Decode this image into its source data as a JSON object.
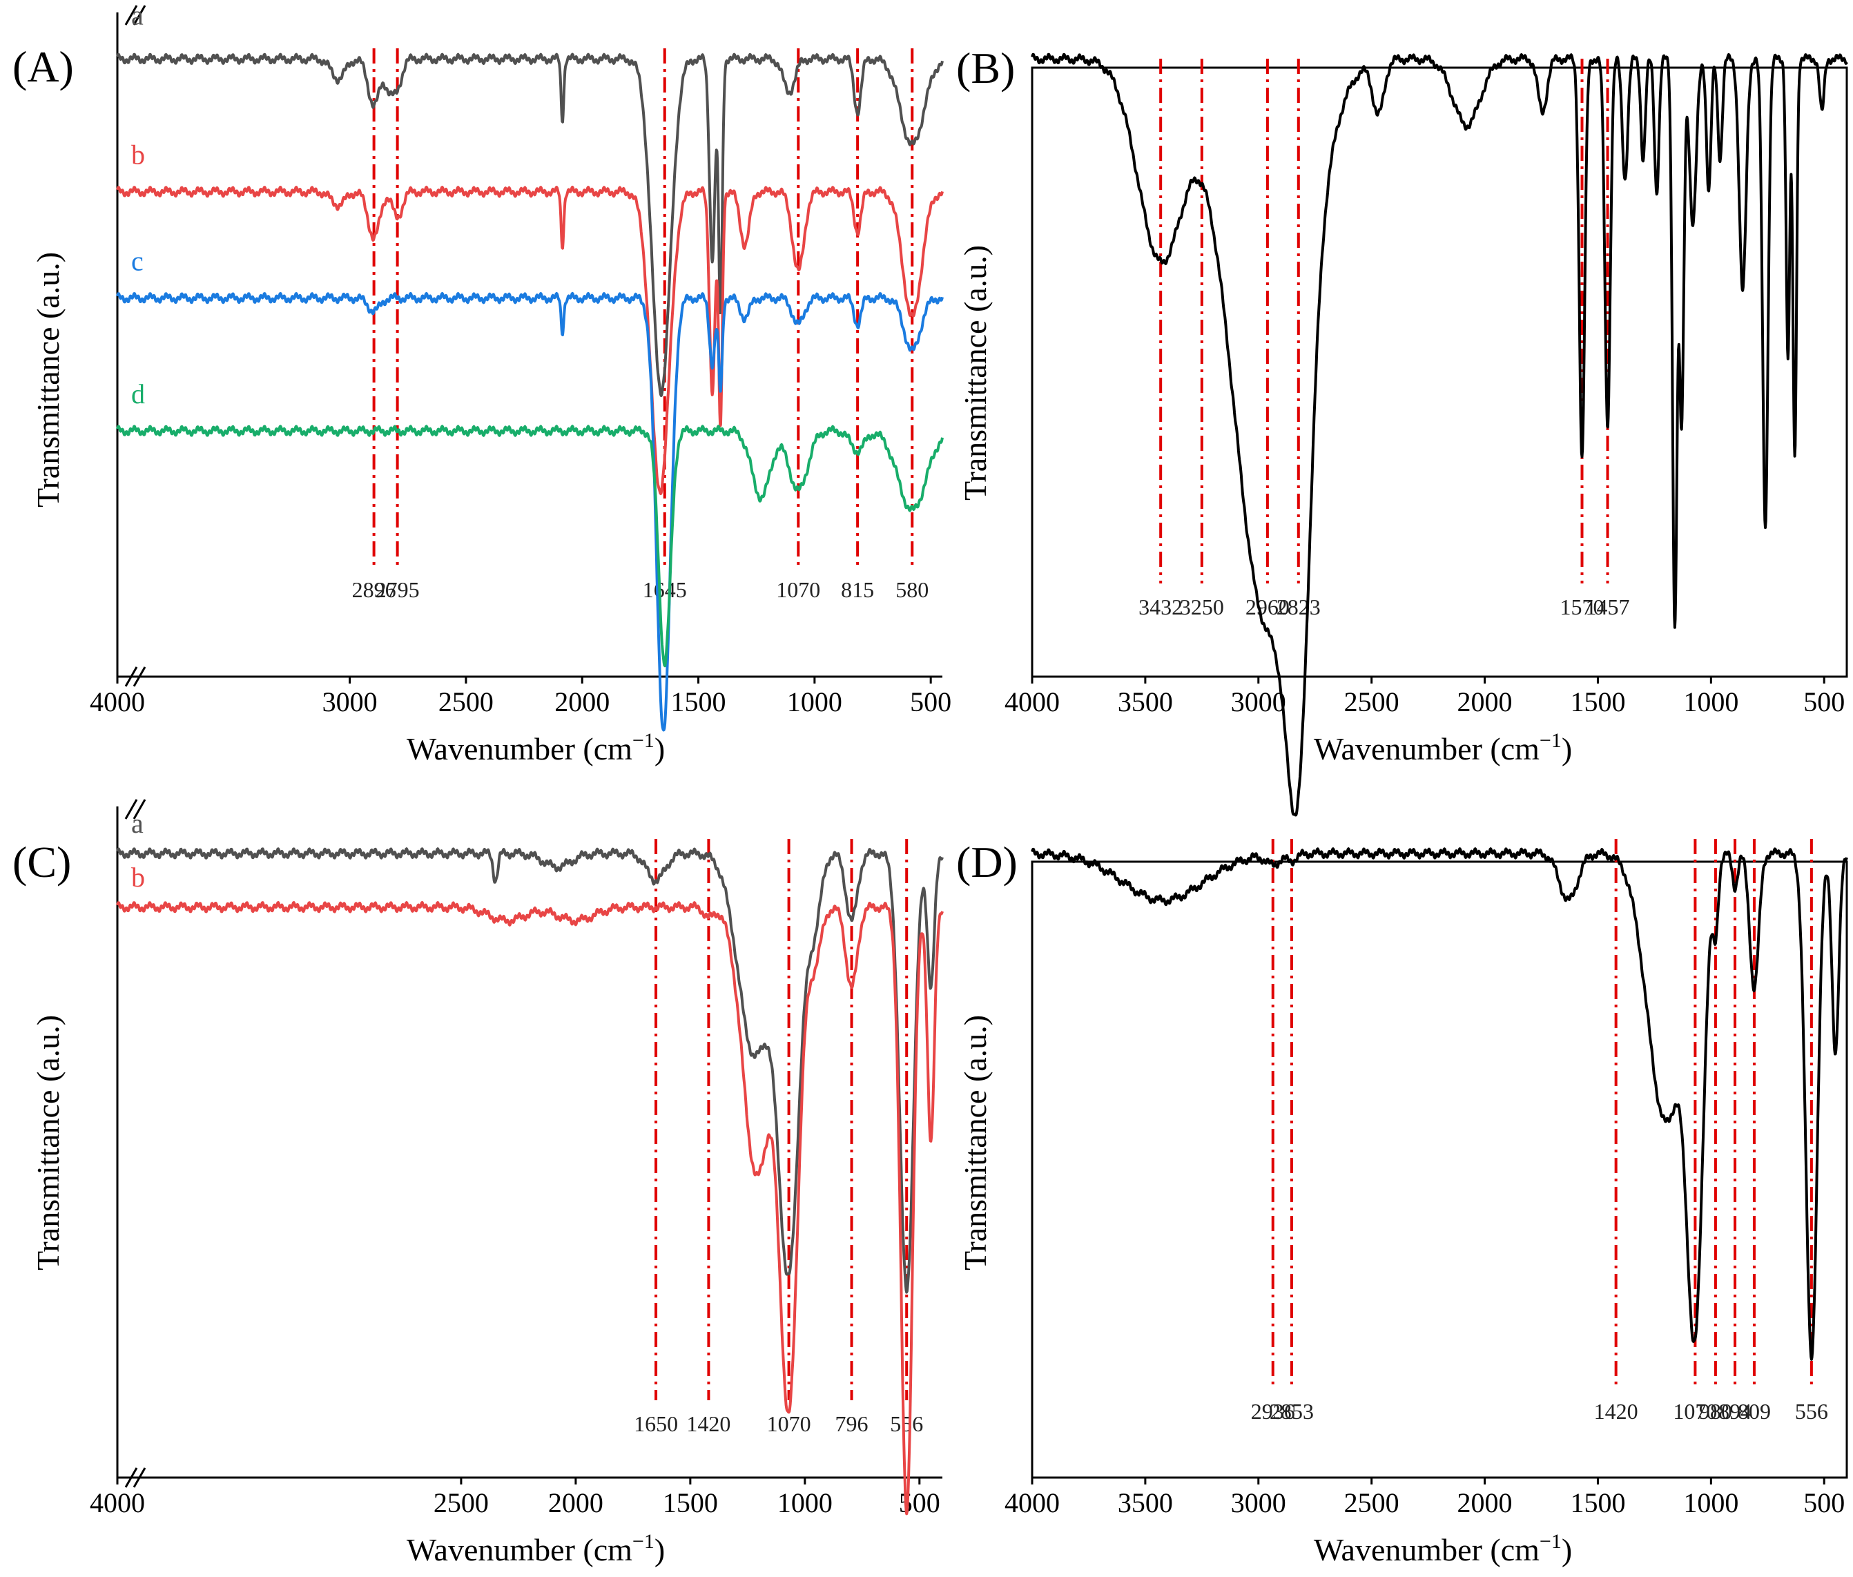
{
  "figure": {
    "colors": {
      "axis": "#000000",
      "marker": "#e00000",
      "gray": "#505050",
      "red": "#e84545",
      "blue": "#1a7be0",
      "green": "#18ad6a",
      "black": "#000000"
    }
  },
  "chart_data": [
    {
      "type": "line",
      "panel_label": "(A)",
      "title": "",
      "xlabel": "Wavenumber (cm",
      "xlabel_sup": "−1",
      "xlabel_close": ")",
      "ylabel": "Transmittance (a.u.)",
      "xlim": [
        4000,
        450
      ],
      "x_reversed": true,
      "axis_break": true,
      "xtick_values": [
        4000,
        3000,
        2500,
        2000,
        1500,
        1000,
        500
      ],
      "xtick_labels": [
        "4000",
        "3000",
        "2500",
        "2000",
        "1500",
        "1000",
        "500"
      ],
      "grid": false,
      "series": [
        {
          "name": "a",
          "color": "gray",
          "baseline": 0.93,
          "features": [
            [
              3050,
              0.03,
              30
            ],
            [
              2896,
              0.07,
              25
            ],
            [
              2830,
              0.04,
              20
            ],
            [
              2795,
              0.04,
              20
            ],
            [
              2085,
              0.09,
              6
            ],
            [
              1660,
              0.5,
              40
            ],
            [
              1440,
              0.3,
              12
            ],
            [
              1405,
              0.38,
              8
            ],
            [
              1110,
              0.05,
              25
            ],
            [
              815,
              0.08,
              15
            ],
            [
              580,
              0.13,
              50
            ]
          ],
          "label_x": 3015
        },
        {
          "name": "b",
          "color": "red",
          "baseline": 0.73,
          "features": [
            [
              3050,
              0.02,
              30
            ],
            [
              2896,
              0.07,
              25
            ],
            [
              2795,
              0.04,
              20
            ],
            [
              2085,
              0.08,
              6
            ],
            [
              1665,
              0.45,
              40
            ],
            [
              1440,
              0.3,
              12
            ],
            [
              1405,
              0.35,
              8
            ],
            [
              1300,
              0.08,
              20
            ],
            [
              1070,
              0.12,
              25
            ],
            [
              815,
              0.06,
              15
            ],
            [
              580,
              0.19,
              40
            ]
          ],
          "label_x": 3015
        },
        {
          "name": "c",
          "color": "blue",
          "baseline": 0.57,
          "features": [
            [
              2896,
              0.02,
              25
            ],
            [
              2085,
              0.05,
              6
            ],
            [
              1650,
              0.65,
              30
            ],
            [
              1440,
              0.1,
              12
            ],
            [
              1405,
              0.14,
              8
            ],
            [
              1300,
              0.03,
              20
            ],
            [
              1070,
              0.04,
              25
            ],
            [
              815,
              0.04,
              15
            ],
            [
              580,
              0.08,
              35
            ]
          ],
          "label_x": 3015
        },
        {
          "name": "d",
          "color": "green",
          "baseline": 0.37,
          "features": [
            [
              1645,
              0.35,
              25
            ],
            [
              1230,
              0.1,
              40
            ],
            [
              1070,
              0.09,
              40
            ],
            [
              815,
              0.03,
              30
            ],
            [
              580,
              0.12,
              60
            ]
          ],
          "label_x": 3015
        }
      ],
      "markers": [
        2896,
        2795,
        1645,
        1070,
        815,
        580
      ],
      "marker_labels": [
        "2896",
        "2795",
        "1645",
        "1070",
        "815",
        "580"
      ]
    },
    {
      "type": "line",
      "panel_label": "(B)",
      "title": "",
      "xlabel": "Wavenumber (cm",
      "xlabel_sup": "−1",
      "xlabel_close": ")",
      "ylabel": "Transmittance (a.u.)",
      "xlim": [
        4000,
        400
      ],
      "x_reversed": true,
      "axis_break": false,
      "xtick_values": [
        4000,
        3500,
        3000,
        2500,
        2000,
        1500,
        1000,
        500
      ],
      "xtick_labels": [
        "4000",
        "3500",
        "3000",
        "2500",
        "2000",
        "1500",
        "1000",
        "500"
      ],
      "grid": false,
      "series": [
        {
          "name": "",
          "color": "black",
          "baseline": 0.93,
          "features": [
            [
              3432,
              0.3,
              100
            ],
            [
              2960,
              0.85,
              150
            ],
            [
              2823,
              0.55,
              50
            ],
            [
              2470,
              0.08,
              25
            ],
            [
              2080,
              0.1,
              60
            ],
            [
              1745,
              0.08,
              20
            ],
            [
              1570,
              0.6,
              12
            ],
            [
              1457,
              0.55,
              12
            ],
            [
              1380,
              0.18,
              12
            ],
            [
              1300,
              0.15,
              10
            ],
            [
              1240,
              0.2,
              10
            ],
            [
              1160,
              0.85,
              10
            ],
            [
              1130,
              0.55,
              10
            ],
            [
              1080,
              0.25,
              15
            ],
            [
              1010,
              0.2,
              10
            ],
            [
              960,
              0.15,
              10
            ],
            [
              860,
              0.35,
              15
            ],
            [
              760,
              0.7,
              12
            ],
            [
              660,
              0.45,
              8
            ],
            [
              630,
              0.6,
              8
            ],
            [
              510,
              0.08,
              10
            ]
          ],
          "label_x": 0
        }
      ],
      "markers": [
        3432,
        3250,
        2960,
        2823,
        1570,
        1457
      ],
      "marker_labels": [
        "3432",
        "3250",
        "2960",
        "2823",
        "1570",
        "1457"
      ]
    },
    {
      "type": "line",
      "panel_label": "(C)",
      "title": "",
      "xlabel": "Wavenumber (cm",
      "xlabel_sup": "−1",
      "xlabel_close": ")",
      "ylabel": "Transmittance (a.u.)",
      "xlim": [
        4000,
        400
      ],
      "x_reversed": true,
      "axis_break": true,
      "xtick_values": [
        4000,
        2500,
        2000,
        1500,
        1000,
        500
      ],
      "xtick_labels": [
        "4000",
        "2500",
        "2000",
        "1500",
        "1000",
        "500"
      ],
      "grid": false,
      "series": [
        {
          "name": "a",
          "color": "gray",
          "baseline": 0.93,
          "features": [
            [
              2350,
              0.04,
              10
            ],
            [
              2080,
              0.02,
              60
            ],
            [
              1650,
              0.04,
              40
            ],
            [
              1220,
              0.3,
              70
            ],
            [
              1070,
              0.6,
              45
            ],
            [
              960,
              0.1,
              30
            ],
            [
              796,
              0.1,
              25
            ],
            [
              556,
              0.65,
              30
            ],
            [
              450,
              0.2,
              15
            ]
          ],
          "label_x": 3850
        },
        {
          "name": "b",
          "color": "red",
          "baseline": 0.85,
          "features": [
            [
              2300,
              0.02,
              80
            ],
            [
              2000,
              0.02,
              80
            ],
            [
              1420,
              0.015,
              20
            ],
            [
              1210,
              0.4,
              60
            ],
            [
              1070,
              0.73,
              40
            ],
            [
              960,
              0.08,
              30
            ],
            [
              796,
              0.12,
              25
            ],
            [
              556,
              0.9,
              25
            ],
            [
              450,
              0.35,
              15
            ]
          ],
          "label_x": 3850
        }
      ],
      "markers": [
        1650,
        1420,
        1070,
        796,
        556
      ],
      "marker_labels": [
        "1650",
        "1420",
        "1070",
        "796",
        "556"
      ]
    },
    {
      "type": "line",
      "panel_label": "(D)",
      "title": "",
      "xlabel": "Wavenumber (cm",
      "xlabel_sup": "−1",
      "xlabel_close": ")",
      "ylabel": "Transmittance (a.u.)",
      "xlim": [
        4000,
        400
      ],
      "x_reversed": true,
      "axis_break": false,
      "xtick_values": [
        4000,
        3500,
        3000,
        2500,
        2000,
        1500,
        1000,
        500
      ],
      "xtick_labels": [
        "4000",
        "3500",
        "3000",
        "2500",
        "2000",
        "1500",
        "1000",
        "500"
      ],
      "grid": false,
      "series": [
        {
          "name": "",
          "color": "black",
          "baseline": 0.93,
          "features": [
            [
              3420,
              0.07,
              180
            ],
            [
              2936,
              0.015,
              30
            ],
            [
              2853,
              0.01,
              25
            ],
            [
              1630,
              0.07,
              40
            ],
            [
              1200,
              0.4,
              80
            ],
            [
              1070,
              0.62,
              35
            ],
            [
              980,
              0.1,
              12
            ],
            [
              894,
              0.05,
              12
            ],
            [
              809,
              0.2,
              20
            ],
            [
              556,
              0.75,
              25
            ],
            [
              450,
              0.3,
              15
            ]
          ],
          "label_x": 0
        }
      ],
      "markers": [
        2936,
        2853,
        1420,
        1070,
        980,
        894,
        809,
        556
      ],
      "marker_labels": [
        "2936",
        "2853",
        "1420",
        "1070",
        "980",
        "894",
        "809",
        "556"
      ]
    }
  ]
}
